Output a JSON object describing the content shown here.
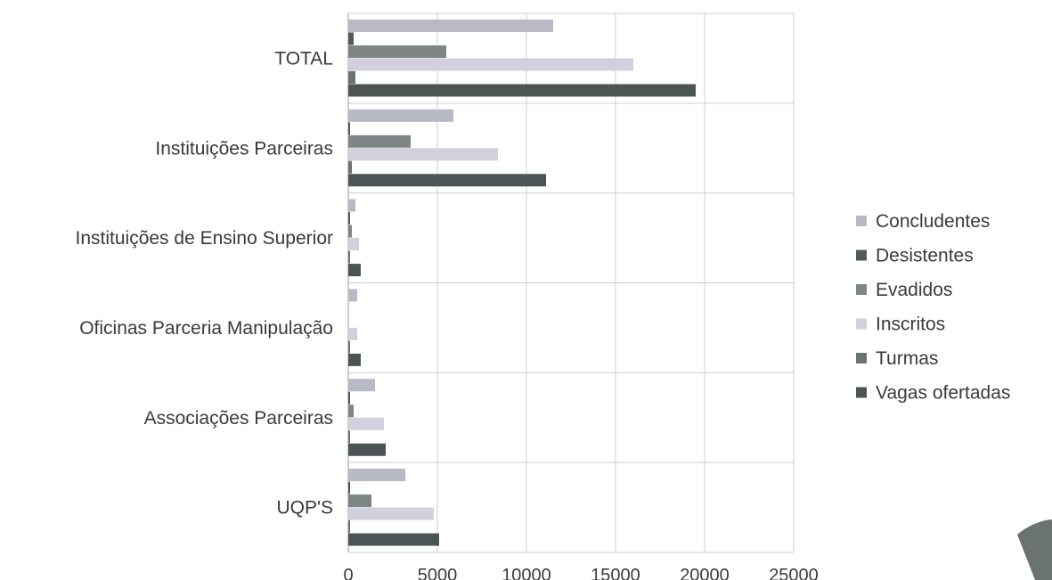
{
  "chart_data": {
    "type": "bar",
    "orientation": "horizontal",
    "categories": [
      "TOTAL",
      "Instituições Parceiras",
      "Instituições de Ensino Superior",
      "Oficinas Parceria Manipulação",
      "Associações Parceiras",
      "UQP'S"
    ],
    "series": [
      {
        "name": "Concludentes",
        "color": "#b9b9c6",
        "values": [
          11500,
          5900,
          400,
          500,
          1500,
          3200
        ]
      },
      {
        "name": "Desistentes",
        "color": "#505a58",
        "values": [
          300,
          100,
          100,
          0,
          100,
          100
        ]
      },
      {
        "name": "Evadidos",
        "color": "#7e8685",
        "values": [
          5500,
          3500,
          200,
          0,
          300,
          1300
        ]
      },
      {
        "name": "Inscritos",
        "color": "#d2d0dc",
        "values": [
          16000,
          8400,
          600,
          500,
          2000,
          4800
        ]
      },
      {
        "name": "Turmas",
        "color": "#6a7372",
        "values": [
          400,
          200,
          100,
          100,
          100,
          100
        ]
      },
      {
        "name": "Vagas ofertadas",
        "color": "#4c5554",
        "values": [
          19500,
          11100,
          700,
          700,
          2100,
          5100
        ]
      }
    ],
    "x_ticks": [
      "0",
      "5000",
      "10000",
      "15000",
      "20000",
      "25000"
    ],
    "xlim": [
      0,
      25000
    ],
    "grid": true,
    "legend_position": "right",
    "title": "",
    "xlabel": "",
    "ylabel": ""
  }
}
